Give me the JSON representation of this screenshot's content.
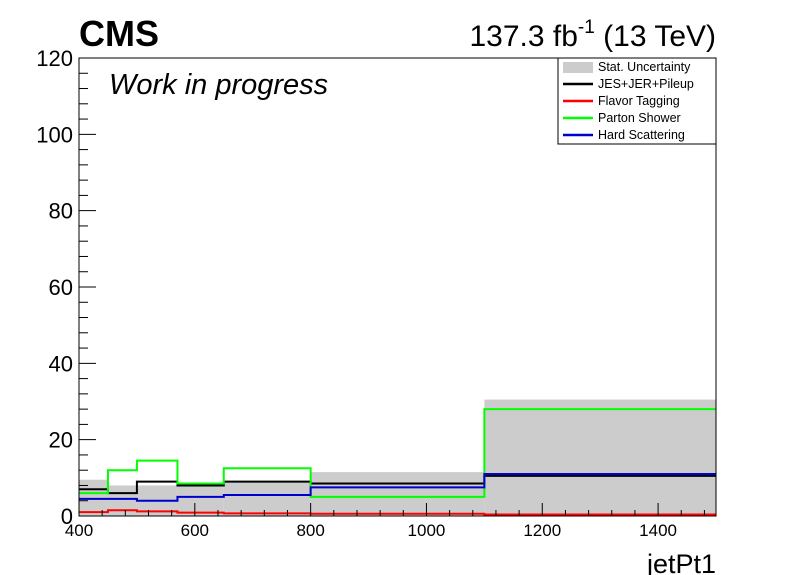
{
  "header": {
    "experiment": "CMS",
    "lumi_value": "137.3 fb",
    "lumi_exp": "-1",
    "energy": " (13 TeV)",
    "status": "Work in progress"
  },
  "colors": {
    "stat": "#cccccc",
    "jes": "#000000",
    "flavor": "#ff0000",
    "parton": "#00ff00",
    "hard": "#0000cc"
  },
  "chart_data": {
    "type": "step",
    "xlabel": "jetPt1",
    "ylabel": "",
    "xlim": [
      400,
      1500
    ],
    "ylim": [
      0,
      120
    ],
    "x_ticks": [
      400,
      600,
      800,
      1000,
      1200,
      1400
    ],
    "y_ticks": [
      0,
      20,
      40,
      60,
      80,
      100,
      120
    ],
    "bin_edges": [
      400,
      450,
      500,
      570,
      650,
      800,
      1100,
      1500
    ],
    "legend_position": "top-right",
    "stat_band": [
      9.5,
      8.0,
      8.0,
      8.0,
      9.0,
      11.5,
      30.5
    ],
    "series": [
      {
        "name": "Stat. Uncertainty",
        "color_key": "stat",
        "style": "band"
      },
      {
        "name": "JES+JER+Pileup",
        "color_key": "jes",
        "values": [
          7.0,
          6.0,
          9.0,
          8.0,
          9.0,
          8.5,
          10.5
        ]
      },
      {
        "name": "Flavor Tagging",
        "color_key": "flavor",
        "values": [
          1.0,
          1.5,
          1.2,
          0.9,
          0.7,
          0.6,
          0.4
        ]
      },
      {
        "name": "Parton Shower",
        "color_key": "parton",
        "values": [
          6.0,
          12.0,
          14.5,
          8.5,
          12.5,
          5.0,
          28.0
        ]
      },
      {
        "name": "Hard Scattering",
        "color_key": "hard",
        "values": [
          4.5,
          4.5,
          4.0,
          5.0,
          5.5,
          7.5,
          11.0
        ]
      }
    ]
  }
}
